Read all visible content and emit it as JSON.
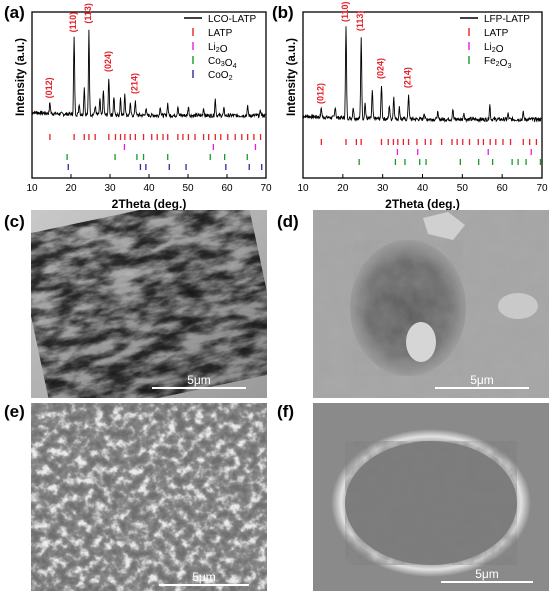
{
  "panels": {
    "a": "(a)",
    "b": "(b)",
    "c": "(c)",
    "d": "(d)",
    "e": "(e)",
    "f": "(f)"
  },
  "sem_images": [
    {
      "id": "c",
      "scale_bar": "5μm"
    },
    {
      "id": "d",
      "scale_bar": "5μm"
    },
    {
      "id": "e",
      "scale_bar": "5μm"
    },
    {
      "id": "f",
      "scale_bar": "5μm"
    }
  ],
  "chart_data": [
    {
      "panel": "(a)",
      "type": "line",
      "xlabel": "2Theta (deg.)",
      "ylabel": "Intensity (a.u.)",
      "xlim": [
        10,
        70
      ],
      "xticks": [
        10,
        20,
        30,
        40,
        50,
        60,
        70
      ],
      "grid": false,
      "legend_position": "top-right",
      "legend": [
        {
          "label": "LCO-LATP",
          "kind": "line",
          "color": "#000000"
        },
        {
          "label": "LATP",
          "kind": "tick",
          "color": "#e8212a"
        },
        {
          "label": "Li2O",
          "kind": "tick",
          "color": "#ee1bd6"
        },
        {
          "label": "Co3O4",
          "kind": "tick",
          "color": "#1a9a25"
        },
        {
          "label": "CoO2",
          "kind": "tick",
          "color": "#2a2aa0"
        }
      ],
      "pattern_peaks": [
        {
          "x": 14.6,
          "h": 0.1
        },
        {
          "x": 20.8,
          "h": 0.7
        },
        {
          "x": 22.1,
          "h": 0.1
        },
        {
          "x": 23.4,
          "h": 0.25
        },
        {
          "x": 24.6,
          "h": 0.78
        },
        {
          "x": 26.2,
          "h": 0.08
        },
        {
          "x": 27.4,
          "h": 0.14
        },
        {
          "x": 28.3,
          "h": 0.22
        },
        {
          "x": 29.7,
          "h": 0.34
        },
        {
          "x": 31.0,
          "h": 0.17
        },
        {
          "x": 32.7,
          "h": 0.16
        },
        {
          "x": 33.8,
          "h": 0.2
        },
        {
          "x": 35.2,
          "h": 0.1
        },
        {
          "x": 36.5,
          "h": 0.14
        },
        {
          "x": 39.2,
          "h": 0.06
        },
        {
          "x": 42.9,
          "h": 0.08
        },
        {
          "x": 44.8,
          "h": 0.11
        },
        {
          "x": 47.4,
          "h": 0.09
        },
        {
          "x": 50.1,
          "h": 0.08
        },
        {
          "x": 54.0,
          "h": 0.07
        },
        {
          "x": 57.0,
          "h": 0.15
        },
        {
          "x": 59.2,
          "h": 0.06
        },
        {
          "x": 65.3,
          "h": 0.08
        },
        {
          "x": 68.6,
          "h": 0.05
        }
      ],
      "peak_labels": [
        {
          "text": "(012)",
          "x": 14.6
        },
        {
          "text": "(110)",
          "x": 20.8
        },
        {
          "text": "(113)",
          "x": 24.6
        },
        {
          "text": "(024)",
          "x": 29.7
        },
        {
          "text": "(214)",
          "x": 36.5
        }
      ],
      "reference_ticks": [
        {
          "phase": "LATP",
          "color": "#e8212a",
          "x": [
            14.6,
            20.8,
            23.4,
            24.6,
            26.2,
            29.7,
            31.4,
            32.7,
            33.8,
            35.2,
            36.5,
            38.6,
            40.7,
            42.1,
            43.6,
            44.8,
            47.4,
            48.7,
            50.1,
            51.8,
            54.0,
            55.3,
            57.0,
            58.4,
            60.2,
            62.1,
            63.8,
            65.3,
            66.9,
            68.6
          ]
        },
        {
          "phase": "Li2O",
          "color": "#ee1bd6",
          "x": [
            33.7,
            56.5,
            67.3
          ]
        },
        {
          "phase": "Co3O4",
          "color": "#1a9a25",
          "x": [
            19.0,
            31.3,
            36.9,
            38.6,
            44.8,
            55.7,
            59.4,
            65.2
          ]
        },
        {
          "phase": "CoO2",
          "color": "#2a2aa0",
          "x": [
            19.3,
            37.8,
            39.2,
            45.2,
            49.5,
            59.7,
            65.7,
            68.9
          ]
        }
      ]
    },
    {
      "panel": "(b)",
      "type": "line",
      "xlabel": "2Theta (deg.)",
      "ylabel": "Intensity (a.u.)",
      "xlim": [
        10,
        70
      ],
      "xticks": [
        10,
        20,
        30,
        40,
        50,
        60,
        70
      ],
      "grid": false,
      "legend_position": "top-right",
      "legend": [
        {
          "label": "LFP-LATP",
          "kind": "line",
          "color": "#000000"
        },
        {
          "label": "LATP",
          "kind": "tick",
          "color": "#e8212a"
        },
        {
          "label": "Li2O",
          "kind": "tick",
          "color": "#ee1bd6"
        },
        {
          "label": "Fe2O3",
          "kind": "tick",
          "color": "#1a9a25"
        }
      ],
      "pattern_peaks": [
        {
          "x": 14.6,
          "h": 0.08
        },
        {
          "x": 18.1,
          "h": 0.1
        },
        {
          "x": 20.8,
          "h": 0.8
        },
        {
          "x": 22.6,
          "h": 0.1
        },
        {
          "x": 24.6,
          "h": 0.72
        },
        {
          "x": 25.6,
          "h": 0.14
        },
        {
          "x": 27.4,
          "h": 0.24
        },
        {
          "x": 29.7,
          "h": 0.3
        },
        {
          "x": 31.7,
          "h": 0.12
        },
        {
          "x": 32.8,
          "h": 0.2
        },
        {
          "x": 34.2,
          "h": 0.1
        },
        {
          "x": 36.5,
          "h": 0.22
        },
        {
          "x": 40.4,
          "h": 0.06
        },
        {
          "x": 43.8,
          "h": 0.06
        },
        {
          "x": 47.6,
          "h": 0.09
        },
        {
          "x": 50.4,
          "h": 0.06
        },
        {
          "x": 56.9,
          "h": 0.13
        },
        {
          "x": 61.5,
          "h": 0.05
        },
        {
          "x": 65.3,
          "h": 0.06
        }
      ],
      "peak_labels": [
        {
          "text": "(012)",
          "x": 14.6
        },
        {
          "text": "(110)",
          "x": 20.8
        },
        {
          "text": "(113)",
          "x": 24.6
        },
        {
          "text": "(024)",
          "x": 29.7
        },
        {
          "text": "(214)",
          "x": 36.5
        }
      ],
      "reference_ticks": [
        {
          "phase": "LATP",
          "color": "#e8212a",
          "x": [
            14.6,
            20.8,
            23.4,
            24.6,
            29.7,
            31.4,
            32.7,
            33.8,
            35.2,
            36.5,
            38.6,
            40.7,
            42.1,
            44.8,
            47.4,
            48.7,
            50.1,
            51.8,
            54.0,
            55.3,
            57.0,
            58.4,
            60.2,
            62.1,
            65.3,
            66.9,
            68.6
          ]
        },
        {
          "phase": "Li2O",
          "color": "#ee1bd6",
          "x": [
            33.7,
            38.8,
            56.5,
            67.3
          ]
        },
        {
          "phase": "Fe2O3",
          "color": "#1a9a25",
          "x": [
            24.1,
            33.2,
            35.6,
            39.3,
            40.9,
            49.5,
            54.1,
            57.6,
            62.5,
            64.0,
            66.0,
            69.6
          ]
        }
      ]
    }
  ]
}
